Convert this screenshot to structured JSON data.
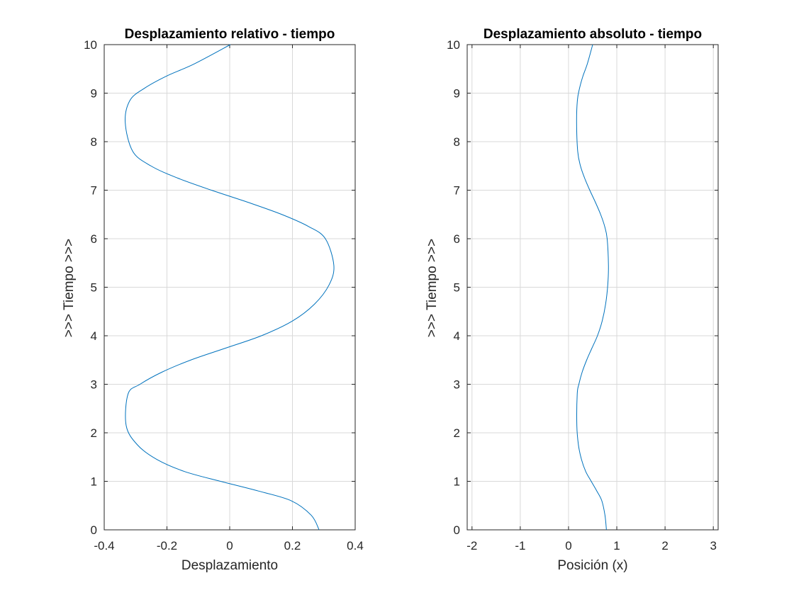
{
  "chart_data": [
    {
      "type": "line",
      "title": "Desplazamiento relativo - tiempo",
      "xlabel": "Desplazamiento",
      "ylabel": ">>> Tiempo >>>",
      "xlim": [
        -0.4,
        0.4
      ],
      "ylim": [
        0,
        10
      ],
      "xticks": [
        "-0.4",
        "-0.2",
        "0",
        "0.2",
        "0.4"
      ],
      "yticks": [
        "0",
        "1",
        "2",
        "3",
        "4",
        "5",
        "6",
        "7",
        "8",
        "9",
        "10"
      ],
      "grid": true,
      "series": [
        {
          "color": "#0072bd",
          "x": [
            0.285,
            0.26,
            0.196,
            0.0915,
            -0.0295,
            -0.143,
            -0.232,
            -0.294,
            -0.33,
            -0.324,
            -0.286,
            -0.216,
            -0.124,
            -0.0108,
            0.101,
            0.199,
            0.27,
            0.317,
            0.332,
            0.305,
            0.252,
            0.166,
            0.0584,
            -0.0583,
            -0.166,
            -0.251,
            -0.309,
            -0.333,
            -0.318,
            -0.272,
            -0.202,
            -0.114,
            0.002
          ],
          "y": [
            0,
            0.3,
            0.6,
            0.8,
            1.0,
            1.2,
            1.45,
            1.75,
            2.15,
            2.8,
            3.0,
            3.25,
            3.5,
            3.75,
            4.0,
            4.3,
            4.65,
            5.05,
            5.45,
            6.0,
            6.25,
            6.5,
            6.75,
            7.0,
            7.25,
            7.5,
            7.8,
            8.4,
            8.85,
            9.1,
            9.35,
            9.6,
            10.0
          ]
        }
      ]
    },
    {
      "type": "line",
      "title": "Desplazamiento absoluto - tiempo",
      "xlabel": "Posición (x)",
      "ylabel": ">>> Tiempo >>>",
      "xlim": [
        -2.1,
        3.1
      ],
      "ylim": [
        0,
        10
      ],
      "xticks": [
        "-2",
        "-1",
        "0",
        "1",
        "2",
        "3"
      ],
      "yticks": [
        "0",
        "1",
        "2",
        "3",
        "4",
        "5",
        "6",
        "7",
        "8",
        "9",
        "10"
      ],
      "grid": true,
      "series": [
        {
          "color": "#0072bd",
          "x": [
            0.785,
            0.755,
            0.689,
            0.586,
            0.47,
            0.357,
            0.268,
            0.205,
            0.172,
            0.18,
            0.214,
            0.282,
            0.376,
            0.487,
            0.599,
            0.696,
            0.768,
            0.813,
            0.827,
            0.8,
            0.75,
            0.665,
            0.557,
            0.44,
            0.333,
            0.247,
            0.19,
            0.167,
            0.183,
            0.228,
            0.298,
            0.388,
            0.5
          ],
          "y": [
            0,
            0.3,
            0.6,
            0.8,
            1.0,
            1.2,
            1.45,
            1.75,
            2.15,
            2.8,
            3.0,
            3.25,
            3.5,
            3.75,
            4.0,
            4.3,
            4.65,
            5.05,
            5.45,
            6.0,
            6.25,
            6.5,
            6.75,
            7.0,
            7.25,
            7.5,
            7.8,
            8.4,
            8.85,
            9.1,
            9.35,
            9.6,
            10.0
          ]
        }
      ]
    }
  ]
}
